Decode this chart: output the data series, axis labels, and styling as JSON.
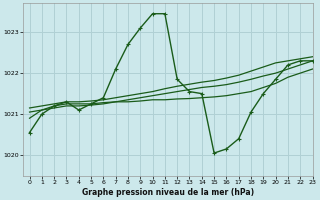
{
  "title": "Graphe pression niveau de la mer (hPa)",
  "bg_color": "#cce8eb",
  "grid_color": "#b0d0d4",
  "line_color": "#1a5c1a",
  "xlim": [
    -0.5,
    23
  ],
  "ylim": [
    1019.5,
    1023.7
  ],
  "yticks": [
    1020,
    1021,
    1022,
    1023
  ],
  "xticks": [
    0,
    1,
    2,
    3,
    4,
    5,
    6,
    7,
    8,
    9,
    10,
    11,
    12,
    13,
    14,
    15,
    16,
    17,
    18,
    19,
    20,
    21,
    22,
    23
  ],
  "series": [
    {
      "x": [
        0,
        1,
        2,
        3,
        4,
        5,
        6,
        7,
        8,
        9,
        10,
        11,
        12,
        13,
        14,
        15,
        16,
        17,
        18,
        19,
        20,
        21,
        22,
        23
      ],
      "y": [
        1020.55,
        1021.0,
        1021.2,
        1021.3,
        1021.1,
        1021.25,
        1021.4,
        1022.1,
        1022.7,
        1023.1,
        1023.45,
        1023.45,
        1021.85,
        1021.55,
        1021.5,
        1020.05,
        1020.15,
        1020.4,
        1021.05,
        1021.5,
        1021.85,
        1022.2,
        1022.3,
        1022.3
      ],
      "marker": true,
      "lw": 1.0
    },
    {
      "x": [
        0,
        1,
        2,
        3,
        4,
        5,
        6,
        7,
        8,
        9,
        10,
        11,
        12,
        13,
        14,
        15,
        16,
        17,
        18,
        19,
        20,
        21,
        22,
        23
      ],
      "y": [
        1020.9,
        1021.1,
        1021.2,
        1021.25,
        1021.25,
        1021.25,
        1021.28,
        1021.3,
        1021.3,
        1021.32,
        1021.35,
        1021.35,
        1021.37,
        1021.38,
        1021.4,
        1021.42,
        1021.45,
        1021.5,
        1021.55,
        1021.65,
        1021.75,
        1021.9,
        1022.0,
        1022.1
      ],
      "marker": false,
      "lw": 0.9
    },
    {
      "x": [
        0,
        1,
        2,
        3,
        4,
        5,
        6,
        7,
        8,
        9,
        10,
        11,
        12,
        13,
        14,
        15,
        16,
        17,
        18,
        19,
        20,
        21,
        22,
        23
      ],
      "y": [
        1021.05,
        1021.1,
        1021.15,
        1021.2,
        1021.2,
        1021.22,
        1021.25,
        1021.3,
        1021.35,
        1021.4,
        1021.45,
        1021.5,
        1021.55,
        1021.6,
        1021.65,
        1021.68,
        1021.72,
        1021.78,
        1021.85,
        1021.93,
        1022.0,
        1022.1,
        1022.2,
        1022.3
      ],
      "marker": false,
      "lw": 0.9
    },
    {
      "x": [
        0,
        1,
        2,
        3,
        4,
        5,
        6,
        7,
        8,
        9,
        10,
        11,
        12,
        13,
        14,
        15,
        16,
        17,
        18,
        19,
        20,
        21,
        22,
        23
      ],
      "y": [
        1021.15,
        1021.2,
        1021.25,
        1021.3,
        1021.3,
        1021.32,
        1021.35,
        1021.4,
        1021.45,
        1021.5,
        1021.55,
        1021.62,
        1021.68,
        1021.73,
        1021.78,
        1021.82,
        1021.88,
        1021.95,
        1022.05,
        1022.15,
        1022.25,
        1022.3,
        1022.35,
        1022.4
      ],
      "marker": false,
      "lw": 0.9
    }
  ]
}
